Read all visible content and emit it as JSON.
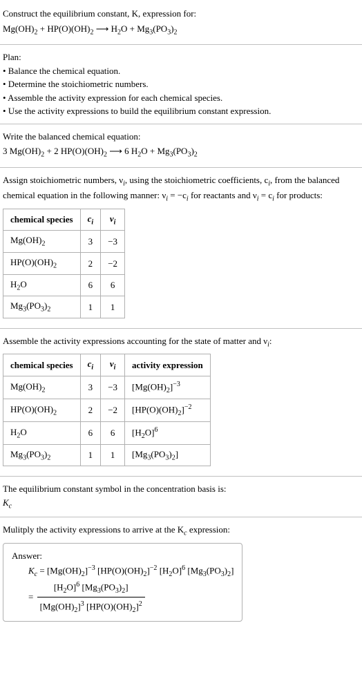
{
  "s1": {
    "l1": "Construct the equilibrium constant, K, expression for:",
    "l2a": "Mg(OH)",
    "l2b": " + HP(O)(OH)",
    "l2c": "  ⟶  H",
    "l2d": "O + Mg",
    "l2e": "(PO",
    "l2f": ")"
  },
  "s2": {
    "h": "Plan:",
    "b1": "• Balance the chemical equation.",
    "b2": "• Determine the stoichiometric numbers.",
    "b3": "• Assemble the activity expression for each chemical species.",
    "b4": "• Use the activity expressions to build the equilibrium constant expression."
  },
  "s3": {
    "l1": "Write the balanced chemical equation:",
    "l2a": "3 Mg(OH)",
    "l2b": " + 2 HP(O)(OH)",
    "l2c": "  ⟶  6 H",
    "l2d": "O + Mg",
    "l2e": "(PO",
    "l2f": ")"
  },
  "s4": {
    "p1a": "Assign stoichiometric numbers, ν",
    "p1b": ", using the stoichiometric coefficients, c",
    "p1c": ", from the balanced chemical equation in the following manner: ν",
    "p1d": " = −c",
    "p1e": " for reactants and ν",
    "p1f": " = c",
    "p1g": " for products:",
    "th1": "chemical species",
    "th2": "cᵢ",
    "th3": "νᵢ",
    "r1c1": "Mg(OH)₂",
    "r1c2": "3",
    "r1c3": "−3",
    "r2c1": "HP(O)(OH)₂",
    "r2c2": "2",
    "r2c3": "−2",
    "r3c1": "H₂O",
    "r3c2": "6",
    "r3c3": "6",
    "r4c1": "Mg₃(PO₃)₂",
    "r4c2": "1",
    "r4c3": "1"
  },
  "s5": {
    "p1a": "Assemble the activity expressions accounting for the state of matter and ν",
    "p1b": ":",
    "th1": "chemical species",
    "th2": "cᵢ",
    "th3": "νᵢ",
    "th4": "activity expression",
    "r1c1": "Mg(OH)₂",
    "r1c2": "3",
    "r1c3": "−3",
    "r2c1": "HP(O)(OH)₂",
    "r2c2": "2",
    "r2c3": "−2",
    "r3c1": "H₂O",
    "r3c2": "6",
    "r3c3": "6",
    "r4c1": "Mg₃(PO₃)₂",
    "r4c2": "1",
    "r4c3": "1"
  },
  "s6": {
    "l1": "The equilibrium constant symbol in the concentration basis is:",
    "l2": "K"
  },
  "s7": {
    "l1a": "Mulitply the activity expressions to arrive at the K",
    "l1b": " expression:"
  },
  "ans": {
    "h": "Answer:"
  }
}
